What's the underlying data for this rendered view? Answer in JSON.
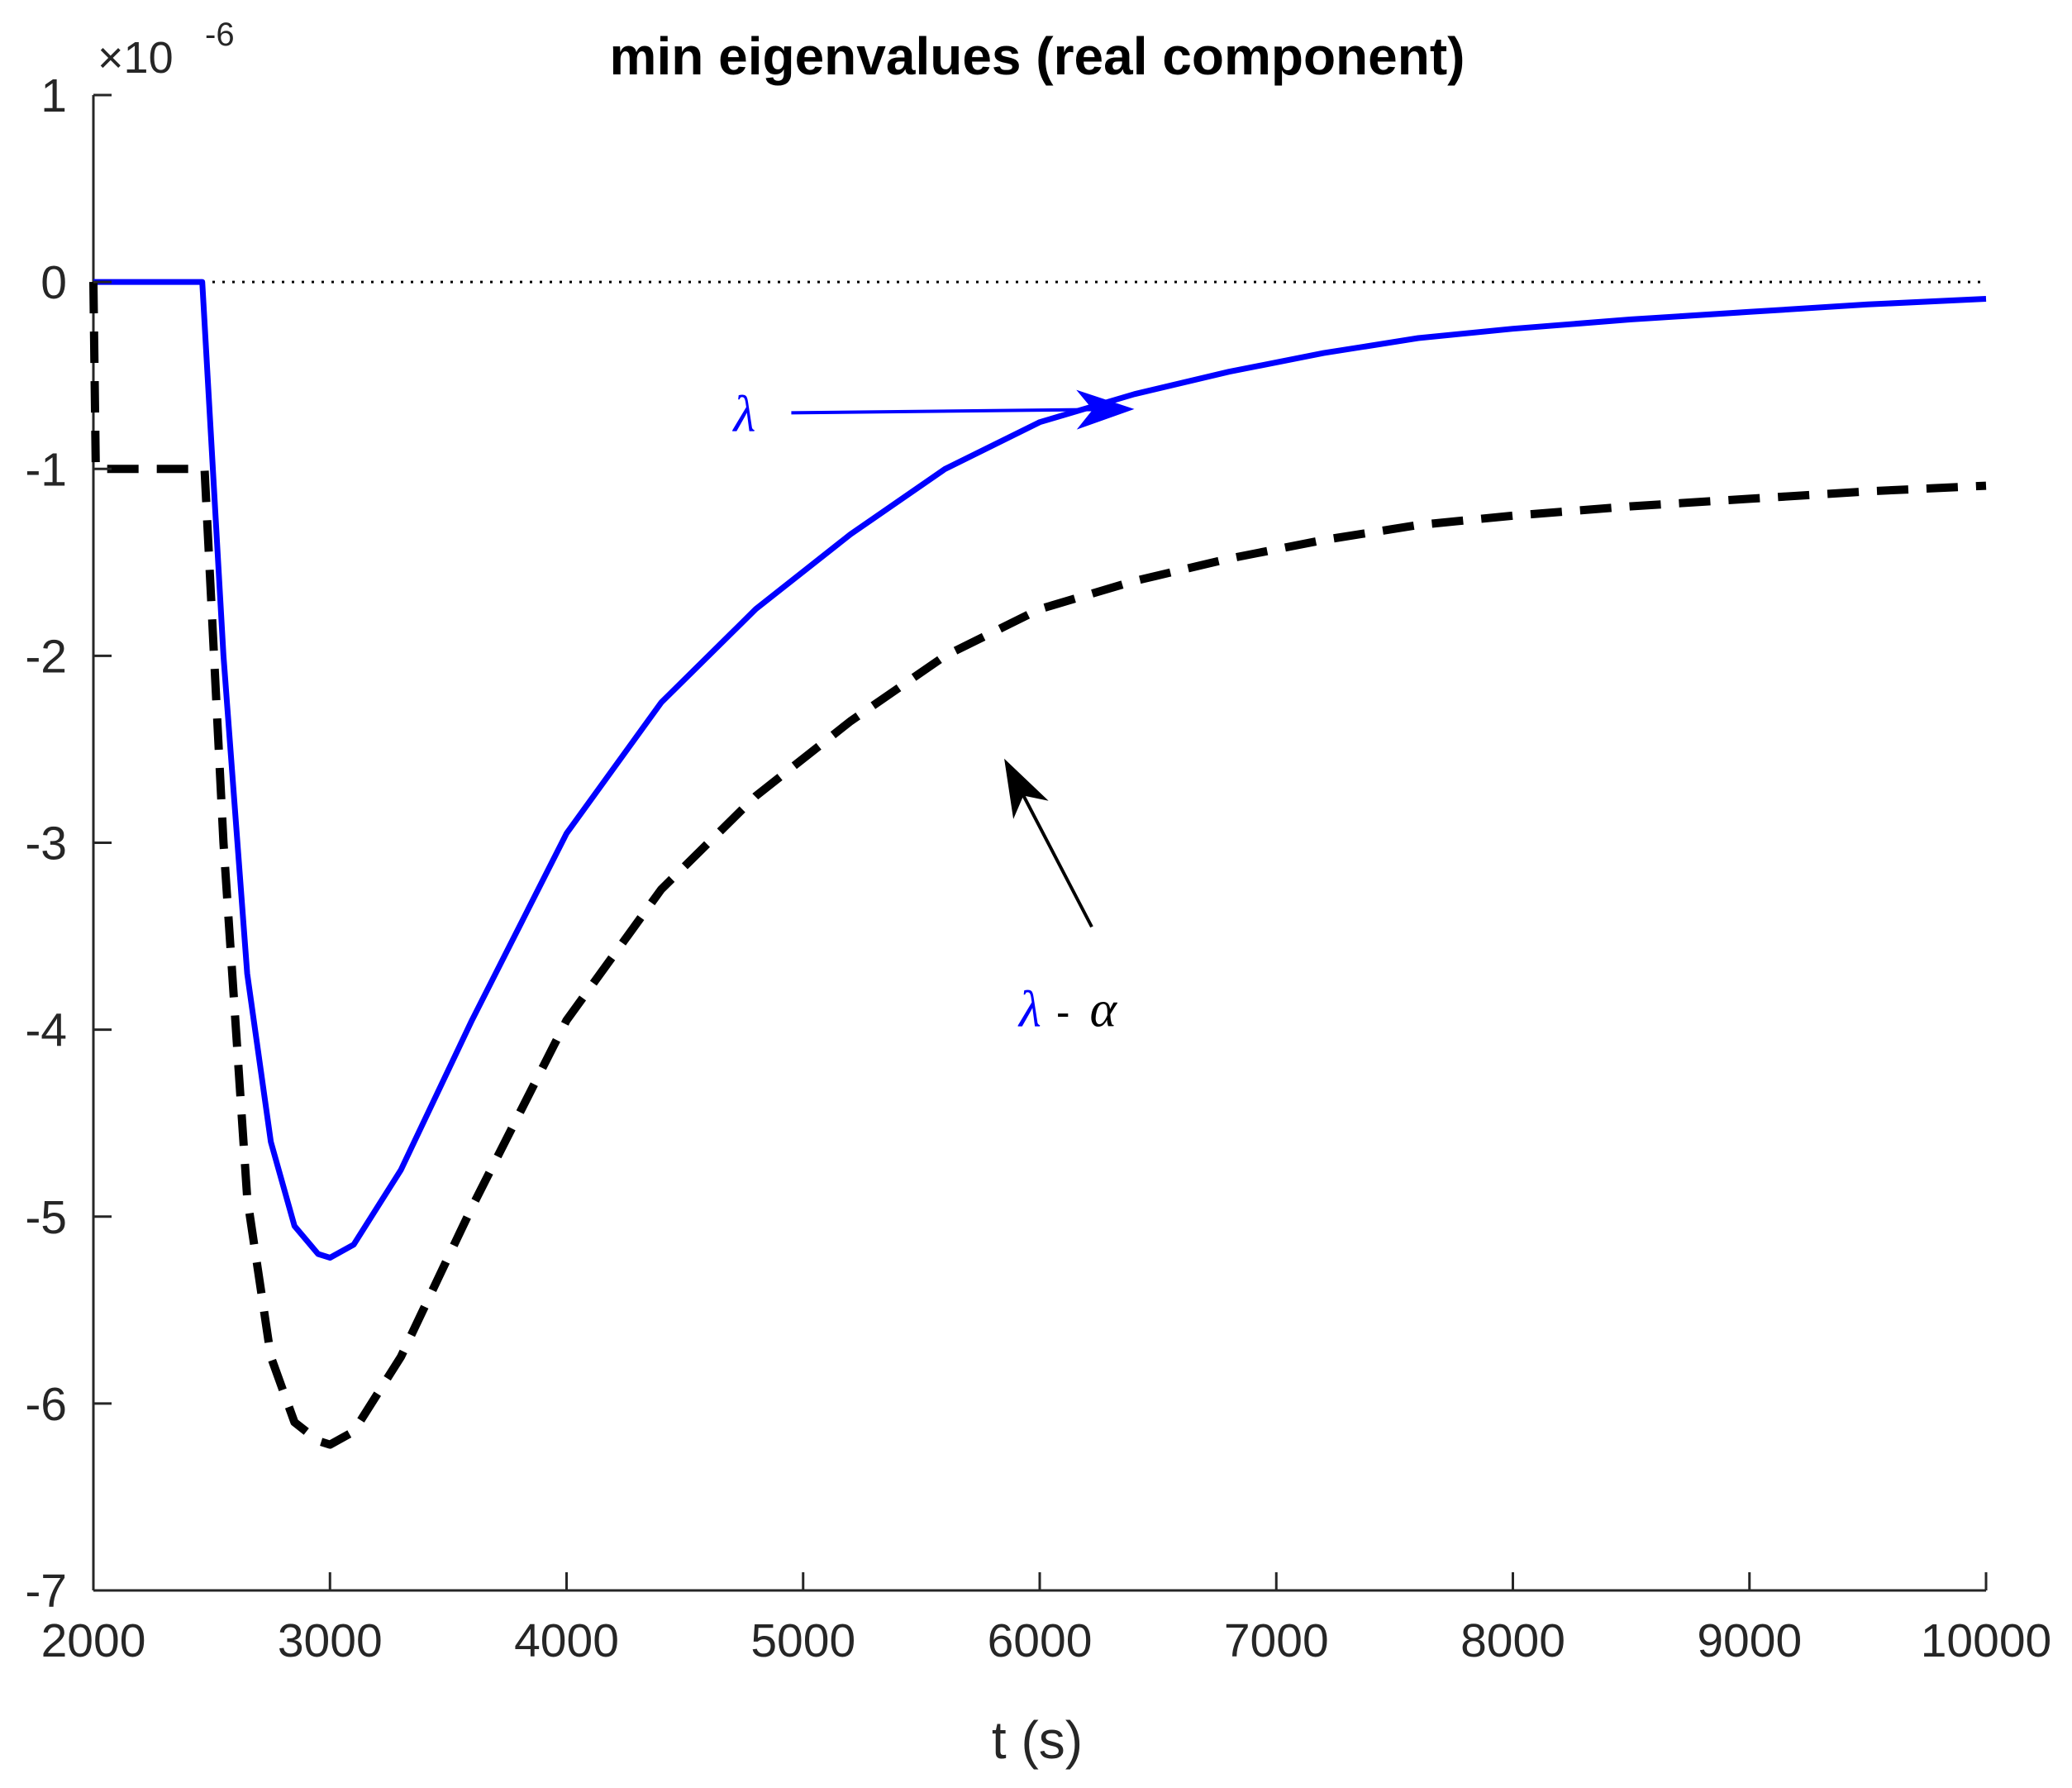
{
  "chart_data": {
    "type": "line",
    "title": "min eigenvalues (real component)",
    "xlabel": "t (s)",
    "ylabel": "",
    "xlim": [
      2000,
      10000
    ],
    "ylim": [
      -7,
      1
    ],
    "y_multiplier": {
      "base": "×10",
      "exponent": "-6"
    },
    "xticks": [
      2000,
      3000,
      4000,
      5000,
      6000,
      7000,
      8000,
      9000,
      10000
    ],
    "xtick_labels": [
      "2000",
      "3000",
      "4000",
      "5000",
      "6000",
      "7000",
      "8000",
      "9000",
      "10000"
    ],
    "yticks": [
      1,
      0,
      -1,
      -2,
      -3,
      -4,
      -5,
      -6,
      -7
    ],
    "ytick_labels": [
      "1",
      "0",
      "-1",
      "-2",
      "-3",
      "-4",
      "-5",
      "-6",
      "-7"
    ],
    "grid": false,
    "legend": "none",
    "reference_line": {
      "y": 0,
      "style": "dotted",
      "color": "#000000"
    },
    "series": [
      {
        "label": "λ",
        "color": "#0000ff",
        "style": "solid",
        "x": [
          2000,
          2450,
          2460,
          2550,
          2650,
          2750,
          2850,
          2950,
          3000,
          3100,
          3300,
          3600,
          4000,
          4400,
          4800,
          5200,
          5600,
          6000,
          6400,
          6800,
          7200,
          7600,
          8000,
          8500,
          9000,
          9500,
          10000
        ],
        "y": [
          0,
          0,
          0,
          -2.0,
          -3.7,
          -4.6,
          -5.05,
          -5.2,
          -5.22,
          -5.15,
          -4.75,
          -3.95,
          -2.95,
          -2.25,
          -1.75,
          -1.35,
          -1.0,
          -0.75,
          -0.6,
          -0.48,
          -0.38,
          -0.3,
          -0.25,
          -0.2,
          -0.16,
          -0.12,
          -0.09
        ]
      },
      {
        "label": "λ - α",
        "color": "#000000",
        "style": "dashed",
        "x": [
          2000,
          2010,
          2450,
          2470,
          2550,
          2650,
          2750,
          2850,
          2950,
          3000,
          3100,
          3300,
          3600,
          4000,
          4400,
          4800,
          5200,
          5600,
          6000,
          6400,
          6800,
          7200,
          7600,
          8000,
          8500,
          9000,
          9500,
          10000
        ],
        "y": [
          0,
          -1.0,
          -1.0,
          -1.0,
          -3.0,
          -4.9,
          -5.75,
          -6.1,
          -6.2,
          -6.22,
          -6.15,
          -5.75,
          -4.95,
          -3.95,
          -3.25,
          -2.75,
          -2.35,
          -2.0,
          -1.75,
          -1.6,
          -1.48,
          -1.38,
          -1.3,
          -1.25,
          -1.2,
          -1.16,
          -1.12,
          -1.09
        ]
      }
    ],
    "annotations": [
      {
        "text": "λ",
        "color": "#0000ff",
        "arrow_from": [
          4950,
          -0.7
        ],
        "arrow_to": [
          6400,
          -0.68
        ]
      },
      {
        "text_parts": [
          {
            "text": "λ",
            "color": "#0000ff"
          },
          {
            "text": "-",
            "color": "#000000"
          },
          {
            "text": "α",
            "color": "#000000"
          }
        ],
        "arrow_from": [
          6220,
          -3.45
        ],
        "arrow_to": [
          5850,
          -2.55
        ]
      }
    ]
  }
}
